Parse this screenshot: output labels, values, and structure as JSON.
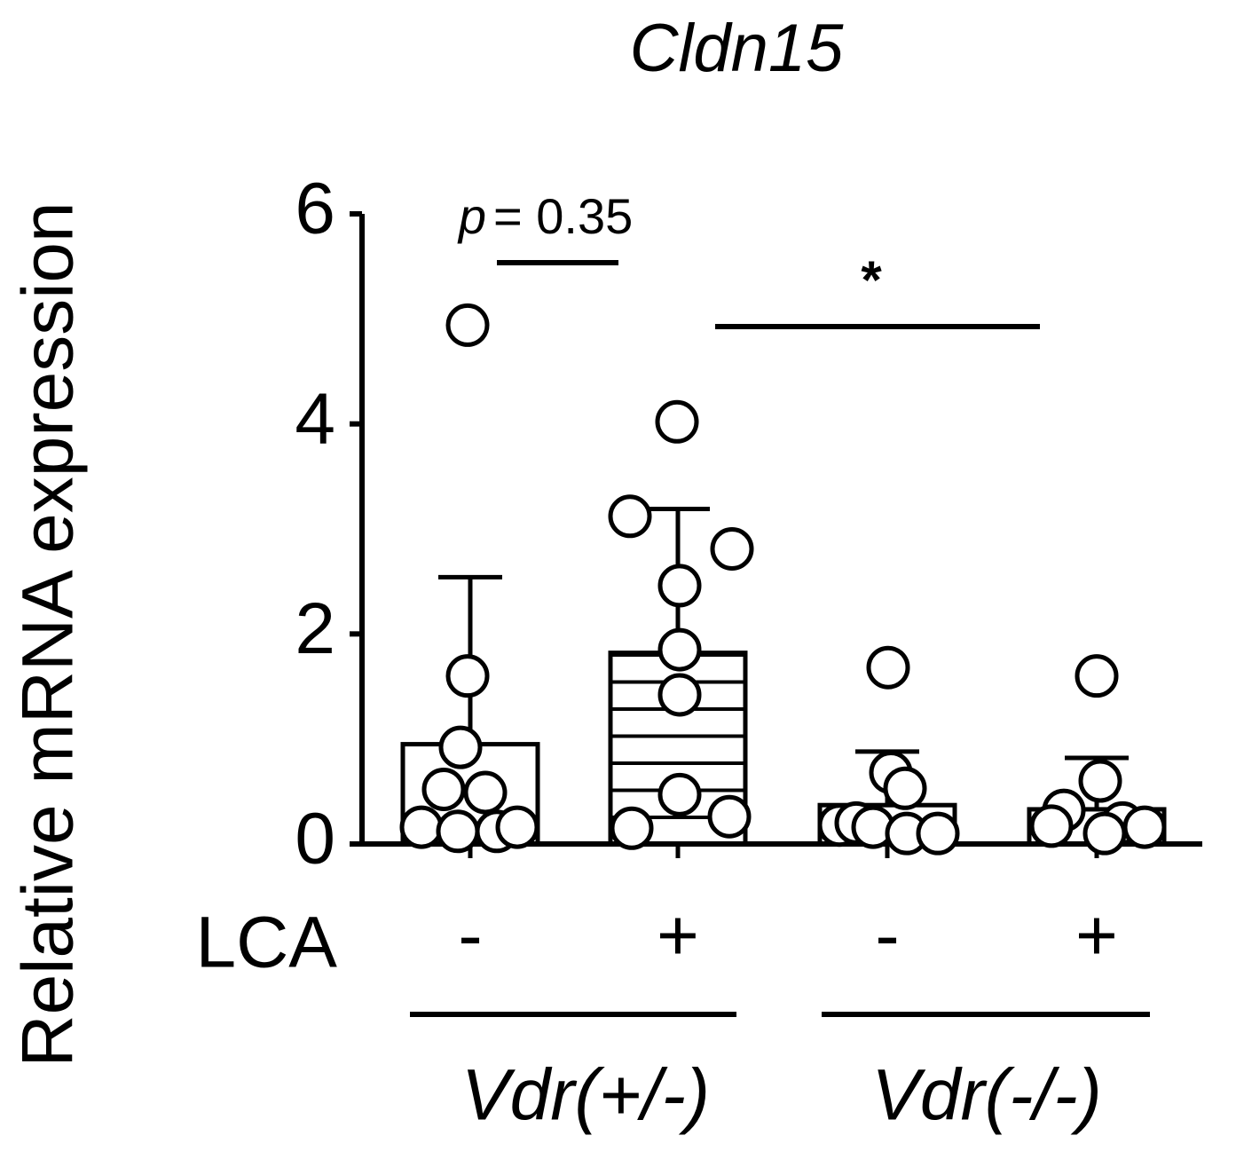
{
  "chart_data": {
    "type": "bar",
    "title": "Cldn15",
    "y_label": "Relative mRNA expression",
    "row_label": "LCA",
    "categories": [
      "-",
      "+",
      "-",
      "+"
    ],
    "values": [
      0.95,
      1.82,
      0.37,
      0.33
    ],
    "errors": [
      1.59,
      1.37,
      0.51,
      0.49
    ],
    "patterns": [
      "none",
      "hlines",
      "none",
      "none"
    ],
    "points": [
      [
        4.94,
        1.6,
        0.92,
        0.52,
        0.49,
        0.16,
        0.12,
        0.12,
        0.16
      ],
      [
        4.02,
        3.12,
        2.81,
        2.46,
        1.85,
        1.42,
        0.47,
        0.26,
        0.15
      ],
      [
        1.68,
        0.68,
        0.53,
        0.18,
        0.2,
        0.16,
        0.1,
        0.1
      ],
      [
        1.6,
        0.6,
        0.32,
        0.17,
        0.2,
        0.1,
        0.16
      ]
    ],
    "groups": [
      {
        "label": "Vdr(+/-)"
      },
      {
        "label": "Vdr(-/-)"
      }
    ],
    "comparisons": [
      {
        "p_symbol": "p",
        "text": "= 0.35"
      },
      {
        "text": "*"
      }
    ],
    "ylim": [
      0,
      6
    ],
    "yticks": [
      0,
      2,
      4,
      6
    ],
    "color": "#000000"
  }
}
